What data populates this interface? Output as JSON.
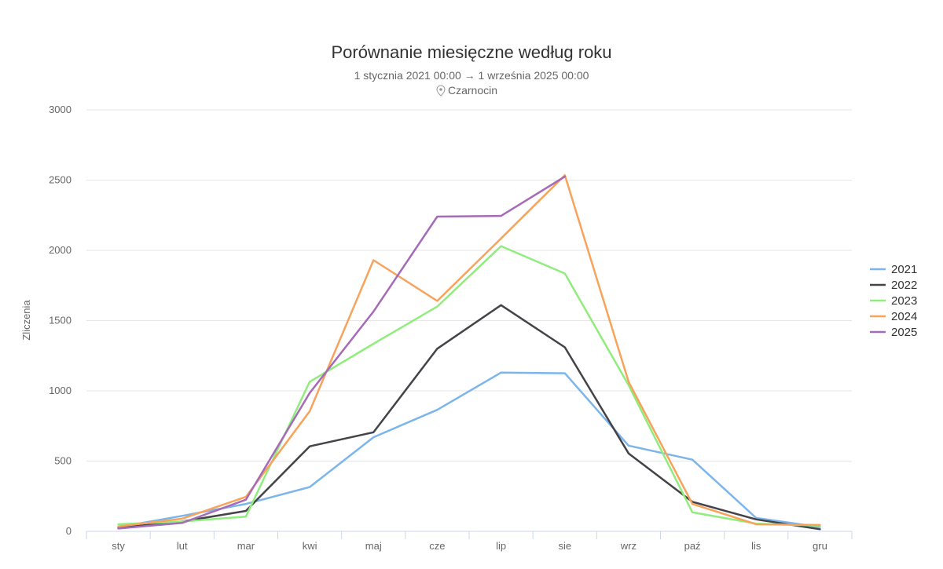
{
  "chart_data": {
    "type": "line",
    "title": "Porównanie miesięczne według roku",
    "subtitle": "1 stycznia 2021 00:00 → 1 września 2025 00:00",
    "location_icon": "map-marker-icon",
    "location": "Czarnocin",
    "xlabel": "",
    "ylabel": "Zliczenia",
    "ylim": [
      0,
      3000
    ],
    "yticks": [
      "0",
      "500",
      "1000",
      "1500",
      "2000",
      "2500",
      "3000"
    ],
    "categories": [
      "sty",
      "lut",
      "mar",
      "kwi",
      "maj",
      "cze",
      "lip",
      "sie",
      "wrz",
      "paź",
      "lis",
      "gru"
    ],
    "grid": true,
    "legend_position": "right",
    "series": [
      {
        "name": "2021",
        "color": "#7cb5ec",
        "values": [
          30,
          110,
          195,
          315,
          670,
          865,
          1130,
          1125,
          610,
          510,
          95,
          30
        ]
      },
      {
        "name": "2022",
        "color": "#434348",
        "values": [
          25,
          70,
          145,
          605,
          705,
          1300,
          1610,
          1310,
          555,
          210,
          85,
          15
        ]
      },
      {
        "name": "2023",
        "color": "#90ed7d",
        "values": [
          50,
          70,
          105,
          1065,
          1335,
          1600,
          2030,
          1835,
          1040,
          135,
          55,
          40
        ]
      },
      {
        "name": "2024",
        "color": "#f7a35c",
        "values": [
          35,
          90,
          245,
          855,
          1930,
          1640,
          2085,
          2535,
          1065,
          195,
          50,
          45
        ]
      },
      {
        "name": "2025",
        "color": "#a56bb8",
        "values": [
          20,
          60,
          225,
          985,
          1565,
          2240,
          2245,
          2525,
          null,
          null,
          null,
          null
        ]
      }
    ]
  }
}
